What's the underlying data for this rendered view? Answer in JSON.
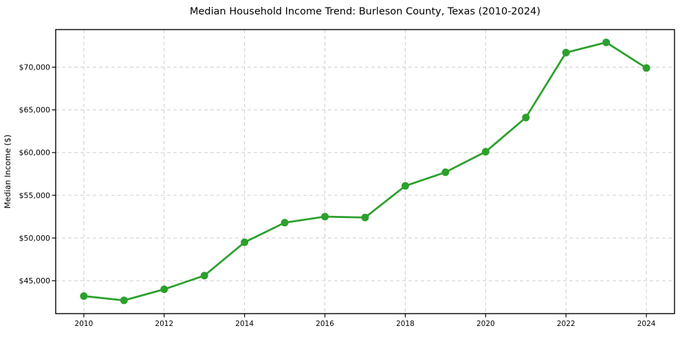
{
  "figure": {
    "background": "#ffffff"
  },
  "chart_data": {
    "type": "line",
    "title": "Median Household Income Trend: Burleson County, Texas (2010-2024)",
    "xlabel": "",
    "ylabel": "Median Income ($)",
    "series": [
      {
        "name": "Median Household Income",
        "x": [
          2010,
          2011,
          2012,
          2013,
          2014,
          2015,
          2016,
          2017,
          2018,
          2019,
          2020,
          2021,
          2022,
          2023,
          2024
        ],
        "values": [
          43200,
          42700,
          44000,
          45600,
          49500,
          51800,
          52500,
          52400,
          56100,
          57700,
          60100,
          64100,
          71700,
          72900,
          69900
        ],
        "line_color": "#2ca02c",
        "marker": "circle"
      }
    ],
    "xticks": [
      2010,
      2012,
      2014,
      2016,
      2018,
      2020,
      2022,
      2024
    ],
    "xtick_labels": [
      "2010",
      "2012",
      "2014",
      "2016",
      "2018",
      "2020",
      "2022",
      "2024"
    ],
    "yticks": [
      45000,
      50000,
      55000,
      60000,
      65000,
      70000
    ],
    "ytick_labels": [
      "$45,000",
      "$50,000",
      "$55,000",
      "$60,000",
      "$65,000",
      "$70,000"
    ],
    "xlim": [
      2009.3,
      2024.7
    ],
    "ylim": [
      41150,
      74400
    ],
    "grid": true,
    "grid_style": "dashed",
    "grid_color": "#cccccc",
    "spine_color": "#000000",
    "plot_background": "#ffffff",
    "legend": "none"
  }
}
